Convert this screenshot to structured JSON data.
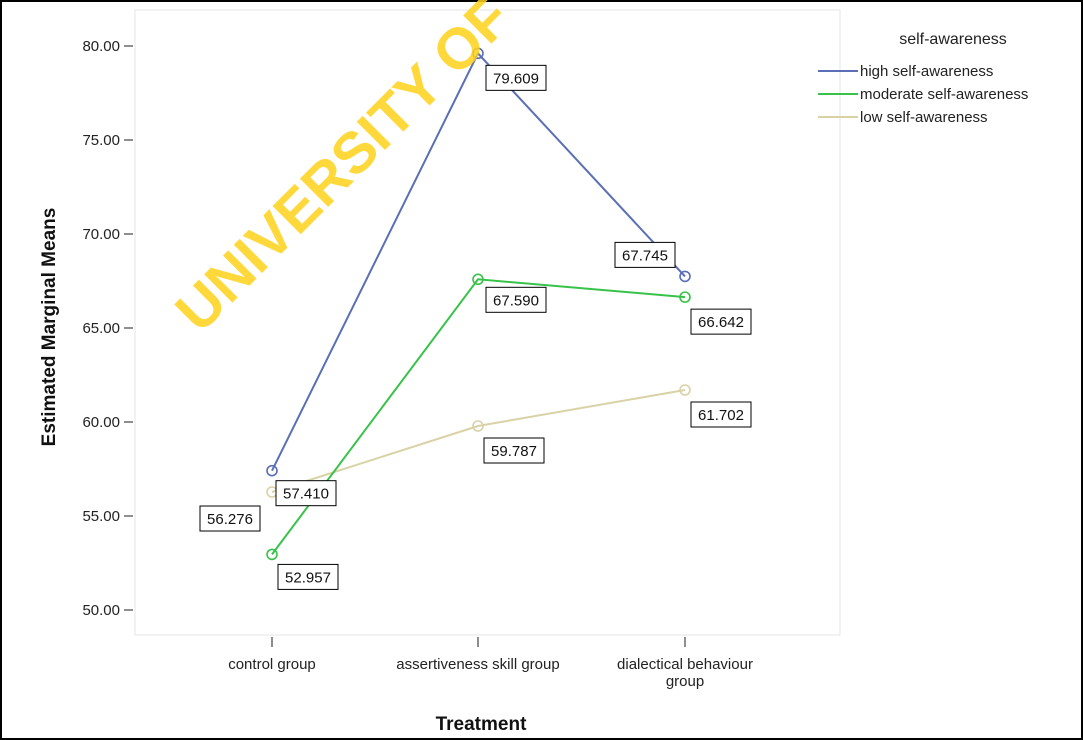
{
  "watermark": "UNIVERSITY OF",
  "chart_data": {
    "type": "line",
    "categories": [
      "control group",
      "assertiveness skill group",
      "dialectical behaviour group"
    ],
    "category_lines": [
      [
        "control group"
      ],
      [
        "assertiveness skill group"
      ],
      [
        "dialectical behaviour",
        "group"
      ]
    ],
    "series": [
      {
        "name": "high self-awareness",
        "color": "#5a6fb5",
        "values": [
          57.41,
          79.609,
          67.745
        ]
      },
      {
        "name": "moderate self-awareness",
        "color": "#39c24a",
        "values": [
          52.957,
          67.59,
          66.642
        ]
      },
      {
        "name": "low self-awareness",
        "color": "#d9d2a6",
        "values": [
          56.276,
          59.787,
          61.702
        ]
      }
    ],
    "data_labels": [
      "57.410",
      "79.609",
      "67.745",
      "52.957",
      "67.590",
      "66.642",
      "56.276",
      "59.787",
      "61.702"
    ],
    "xlabel": "Treatment",
    "ylabel": "Estimated Marginal Means",
    "ylim": [
      50,
      80
    ],
    "yticks": [
      "50.00",
      "55.00",
      "60.00",
      "65.00",
      "70.00",
      "75.00",
      "80.00"
    ],
    "legend_title": "self-awareness",
    "legend_position": "top-right",
    "grid": false
  }
}
